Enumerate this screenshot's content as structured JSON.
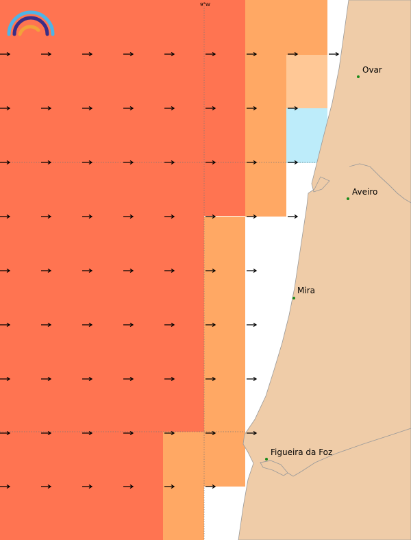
{
  "map": {
    "grid_label": "9°W",
    "colors": {
      "sea_strong": "#ff7451",
      "sea_medium": "#ffa864",
      "sea_light": "#ffc896",
      "sea_cold": "#bdecfa",
      "land": "#efcca8",
      "coast": "#9a9a9a",
      "city_dot": "#1a8a1a",
      "arrow": "#000000",
      "logo_outer": "#4fb4e6",
      "logo_middle": "#3a2d86",
      "logo_inner": "#f2a23a"
    },
    "cities": [
      {
        "name": "Ovar"
      },
      {
        "name": "Aveiro"
      },
      {
        "name": "Mira"
      },
      {
        "name": "Figueira da Foz"
      }
    ],
    "logo_icon": "rainbow-logo-icon",
    "arrow_icon": "current-arrow-icon"
  }
}
